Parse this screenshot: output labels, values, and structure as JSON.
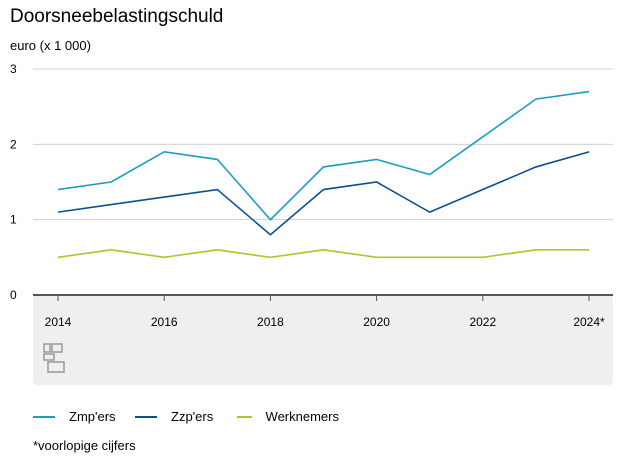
{
  "chart_data": {
    "type": "line",
    "title": "Doorsneebelastingschuld",
    "ylabel": "euro (x 1 000)",
    "xlabel": "",
    "ylim": [
      0,
      3
    ],
    "yticks": [
      "0",
      "1",
      "2",
      "3"
    ],
    "x": [
      2014,
      2015,
      2016,
      2017,
      2018,
      2019,
      2020,
      2021,
      2022,
      2023,
      2024
    ],
    "xticks": [
      "2014",
      "2016",
      "2018",
      "2020",
      "2022",
      "2024*"
    ],
    "grid": true,
    "legend_position": "bottom-left",
    "series": [
      {
        "name": "Zmp'ers",
        "color": "#1a9fbd",
        "values": [
          1.4,
          1.5,
          1.9,
          1.8,
          1.0,
          1.7,
          1.8,
          1.6,
          2.1,
          2.6,
          2.7
        ]
      },
      {
        "name": "Zzp'ers",
        "color": "#0b4f8f",
        "values": [
          1.1,
          1.2,
          1.3,
          1.4,
          0.8,
          1.4,
          1.5,
          1.1,
          1.4,
          1.7,
          1.9
        ]
      },
      {
        "name": "Werknemers",
        "color": "#a8c82b",
        "values": [
          0.5,
          0.6,
          0.5,
          0.6,
          0.5,
          0.6,
          0.5,
          0.5,
          0.5,
          0.6,
          0.6
        ]
      }
    ],
    "footnote": "*voorlopige cijfers"
  }
}
